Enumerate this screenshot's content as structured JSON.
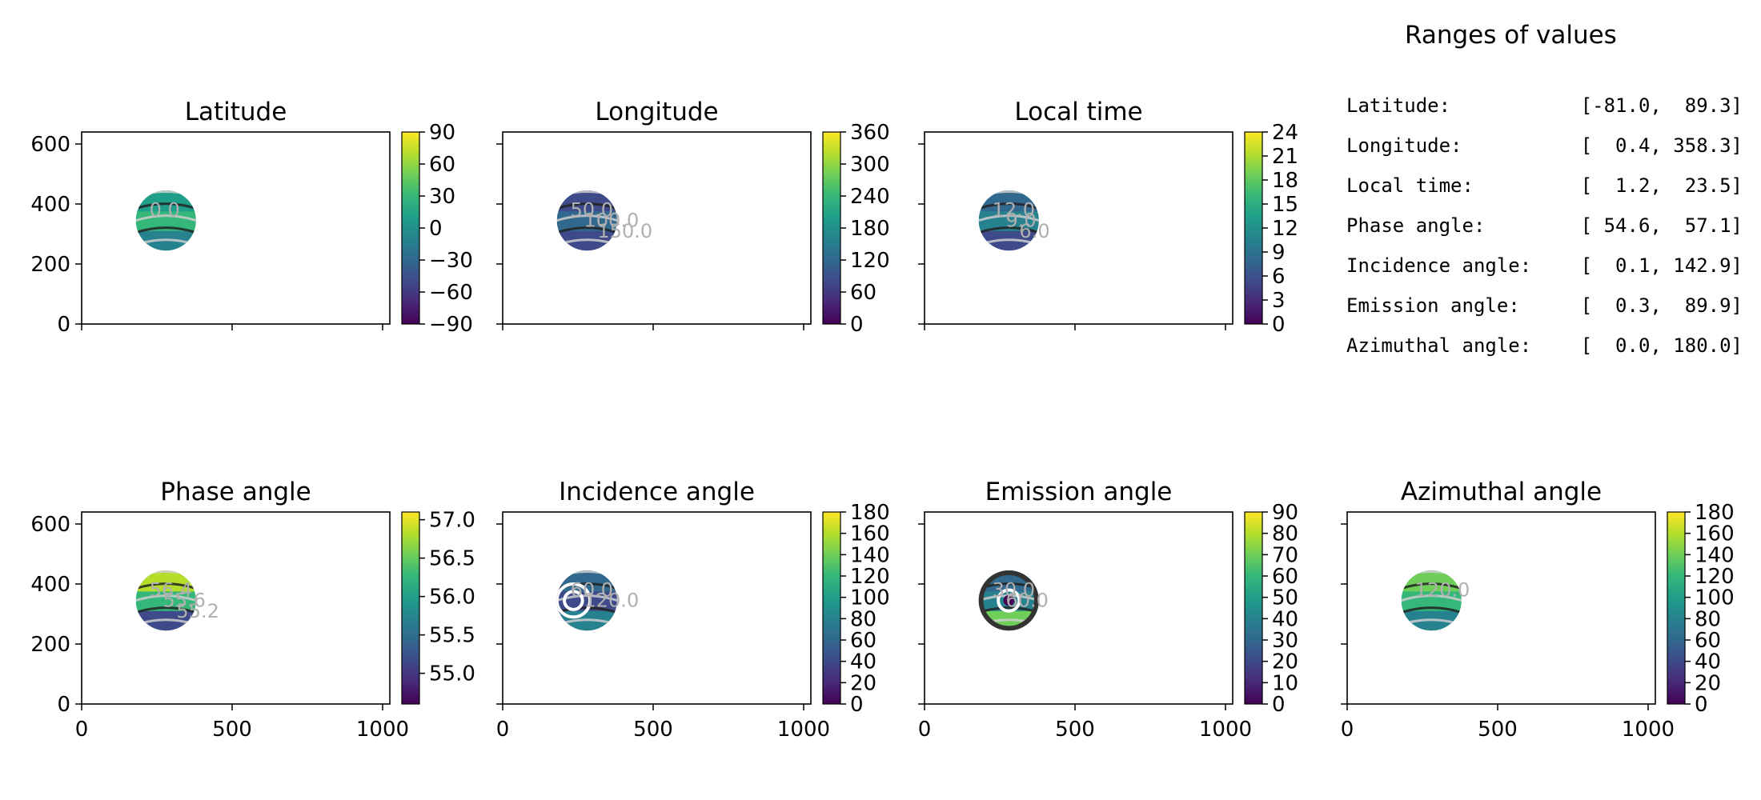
{
  "ranges": {
    "title": "Ranges of values",
    "rows": [
      {
        "label": "Latitude:",
        "value": "[-81.0,  89.3]"
      },
      {
        "label": "Longitude:",
        "value": "[  0.4, 358.3]"
      },
      {
        "label": "Local time:",
        "value": "[  1.2,  23.5]"
      },
      {
        "label": "Phase angle:",
        "value": "[ 54.6,  57.1]"
      },
      {
        "label": "Incidence angle:",
        "value": "[  0.1, 142.9]"
      },
      {
        "label": "Emission angle:",
        "value": "[  0.3,  89.9]"
      },
      {
        "label": "Azimuthal angle:",
        "value": "[  0.0, 180.0]"
      }
    ]
  },
  "colormap": {
    "name": "viridis",
    "stops": [
      "#440154",
      "#482878",
      "#3e4a89",
      "#31688e",
      "#26828e",
      "#1f9e89",
      "#35b779",
      "#6ece58",
      "#b5de2b",
      "#fde725"
    ]
  },
  "chart_data": [
    {
      "type": "heatmap",
      "title": "Latitude",
      "xticks": [],
      "yticks": [
        "0",
        "200",
        "400",
        "600"
      ],
      "xlim": [
        0,
        1024
      ],
      "ylim": [
        0,
        640
      ],
      "disk": {
        "cx": 280,
        "cy": 345,
        "r": 100
      },
      "colorbar": {
        "range": [
          -90,
          90
        ],
        "ticks": [
          "−90",
          "−60",
          "−30",
          "0",
          "30",
          "60",
          "90"
        ]
      },
      "contour_labels": [
        "0.0"
      ]
    },
    {
      "type": "heatmap",
      "title": "Longitude",
      "xticks": [],
      "yticks": [],
      "xlim": [
        0,
        1024
      ],
      "ylim": [
        0,
        640
      ],
      "disk": {
        "cx": 280,
        "cy": 345,
        "r": 100
      },
      "colorbar": {
        "range": [
          0,
          360
        ],
        "ticks": [
          "0",
          "60",
          "120",
          "180",
          "240",
          "300",
          "360"
        ]
      },
      "contour_labels": [
        "50.0",
        "100.0",
        "150.0"
      ]
    },
    {
      "type": "heatmap",
      "title": "Local time",
      "xticks": [],
      "yticks": [],
      "xlim": [
        0,
        1024
      ],
      "ylim": [
        0,
        640
      ],
      "disk": {
        "cx": 280,
        "cy": 345,
        "r": 100
      },
      "colorbar": {
        "range": [
          0,
          24
        ],
        "ticks": [
          "0",
          "3",
          "6",
          "9",
          "12",
          "15",
          "18",
          "21",
          "24"
        ]
      },
      "contour_labels": [
        "12.0",
        "9.0",
        "6.0"
      ]
    },
    {
      "type": "heatmap",
      "title": "Phase angle",
      "xticks": [
        "0",
        "500",
        "1000"
      ],
      "yticks": [
        "0",
        "200",
        "400",
        "600"
      ],
      "xlim": [
        0,
        1024
      ],
      "ylim": [
        0,
        640
      ],
      "disk": {
        "cx": 280,
        "cy": 345,
        "r": 100
      },
      "colorbar": {
        "range": [
          54.6,
          57.1
        ],
        "ticks": [
          "55.0",
          "55.5",
          "56.0",
          "56.5",
          "57.0"
        ],
        "tick_values": [
          55.0,
          55.5,
          56.0,
          56.5,
          57.0
        ]
      },
      "contour_labels": [
        "56.4",
        "55.6",
        "55.2"
      ]
    },
    {
      "type": "heatmap",
      "title": "Incidence angle",
      "xticks": [
        "0",
        "500",
        "1000"
      ],
      "yticks": [],
      "xlim": [
        0,
        1024
      ],
      "ylim": [
        0,
        640
      ],
      "disk": {
        "cx": 280,
        "cy": 345,
        "r": 100
      },
      "colorbar": {
        "range": [
          0,
          180
        ],
        "ticks": [
          "0",
          "20",
          "40",
          "60",
          "80",
          "100",
          "120",
          "140",
          "160",
          "180"
        ]
      },
      "contour_labels": [
        "60.0",
        "120.0"
      ]
    },
    {
      "type": "heatmap",
      "title": "Emission angle",
      "xticks": [
        "0",
        "500",
        "1000"
      ],
      "yticks": [],
      "xlim": [
        0,
        1024
      ],
      "ylim": [
        0,
        640
      ],
      "disk": {
        "cx": 280,
        "cy": 345,
        "r": 100
      },
      "colorbar": {
        "range": [
          0,
          90
        ],
        "ticks": [
          "0",
          "10",
          "20",
          "30",
          "40",
          "50",
          "60",
          "70",
          "80",
          "90"
        ]
      },
      "contour_labels": [
        "30.0",
        "60.0"
      ]
    },
    {
      "type": "heatmap",
      "title": "Azimuthal angle",
      "xticks": [
        "0",
        "500",
        "1000"
      ],
      "yticks": [],
      "xlim": [
        0,
        1024
      ],
      "ylim": [
        0,
        640
      ],
      "disk": {
        "cx": 280,
        "cy": 345,
        "r": 100
      },
      "colorbar": {
        "range": [
          0,
          180
        ],
        "ticks": [
          "0",
          "20",
          "40",
          "60",
          "80",
          "100",
          "120",
          "140",
          "160",
          "180"
        ]
      },
      "contour_labels": [
        "120.0"
      ]
    }
  ]
}
